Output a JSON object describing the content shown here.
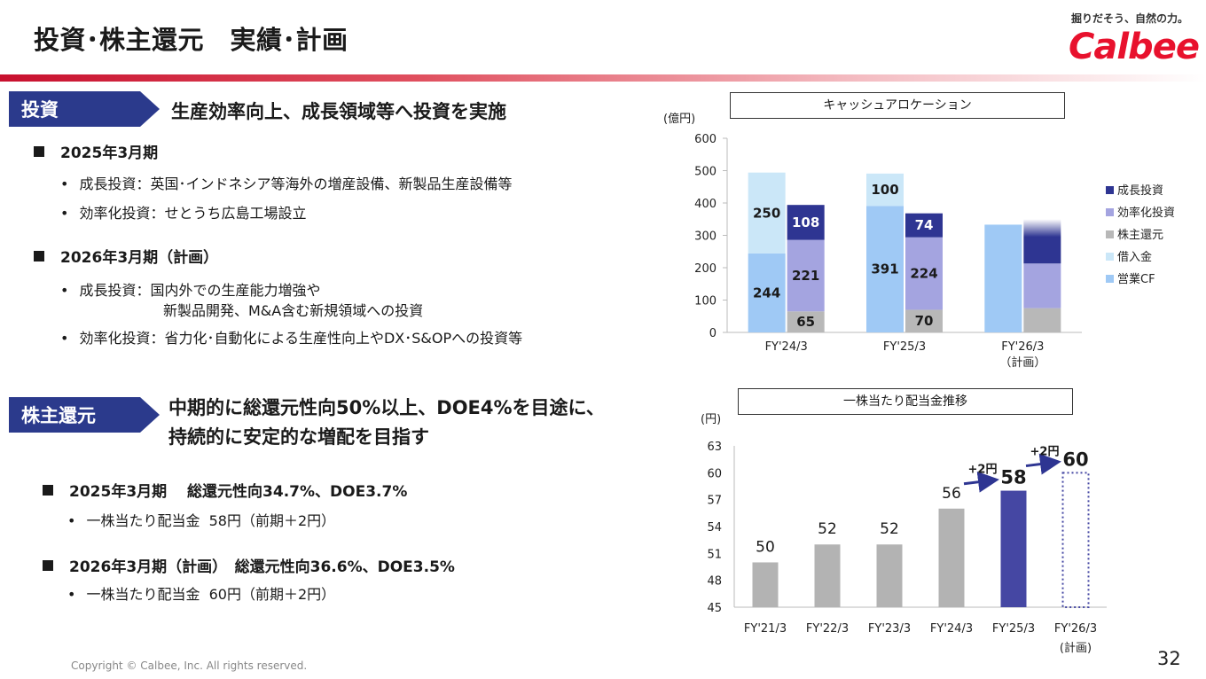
{
  "header": {
    "title": "投資･株主還元　実績･計画",
    "tagline": "掘りだそう、自然の力。",
    "logo_text": "Calbee",
    "brand_color": "#e8112d"
  },
  "investment": {
    "tag_label": "投資",
    "heading": "生産効率向上、成長領域等へ投資を実施",
    "fy25_title": "2025年3月期",
    "fy25_items": [
      "成長投資：英国･インドネシア等海外の増産設備、新製品生産設備等",
      "効率化投資：せとうち広島工場設立"
    ],
    "fy26_title": "2026年3月期（計画）",
    "fy26_item1_line1": "成長投資：国内外での生産能力増強や",
    "fy26_item1_line2": "新製品開発、M&A含む新規領域への投資",
    "fy26_item2": "効率化投資：省力化･自動化による生産性向上やDX･S&OPへの投資等"
  },
  "returns": {
    "tag_label": "株主還元",
    "heading_line1": "中期的に総還元性向50%以上、DOE4%を目途に、",
    "heading_line2": "持続的に安定的な増配を目指す",
    "fy25_title": "2025年3月期　 総還元性向34.7%、DOE3.7%",
    "fy25_item": "一株当たり配当金  58円（前期＋2円）",
    "fy26_title": "2026年3月期（計画）　総還元性向36.6%、DOE3.5%",
    "fy26_item": "一株当たり配当金  60円（前期＋2円）"
  },
  "footer": {
    "copyright": "Copyright © Calbee, Inc. All rights reserved.",
    "page_number": "32"
  },
  "chart_data": [
    {
      "type": "bar",
      "title": "キャッシュアロケーション",
      "ylabel": "(億円)",
      "ylim": [
        0,
        600
      ],
      "yticks": [
        0,
        100,
        200,
        300,
        400,
        500,
        600
      ],
      "categories": [
        "FY'24/3",
        "FY'25/3",
        "FY'26/3"
      ],
      "category_notes": [
        "",
        "",
        "（計画）"
      ],
      "sources": [
        {
          "name": "営業CF",
          "color": "#9fc9f5",
          "values": [
            244,
            391,
            333
          ]
        },
        {
          "name": "借入金",
          "color": "#cbe7f8",
          "values": [
            250,
            100,
            0
          ]
        }
      ],
      "uses": [
        {
          "name": "株主還元",
          "color": "#b8b8b8",
          "values": [
            65,
            70,
            75
          ]
        },
        {
          "name": "効率化投資",
          "color": "#a4a4e0",
          "values": [
            221,
            224,
            138
          ]
        },
        {
          "name": "成長投資",
          "color": "#2e3592",
          "values": [
            108,
            74,
            137
          ]
        }
      ],
      "labels": {
        "sources": [
          [
            "244",
            "250"
          ],
          [
            "391",
            "100"
          ],
          [
            "",
            ""
          ]
        ],
        "uses": [
          [
            "65",
            "221",
            "108"
          ],
          [
            "70",
            "224",
            "74"
          ],
          [
            "",
            "",
            ""
          ]
        ]
      },
      "legend": [
        "成長投資",
        "効率化投資",
        "株主還元",
        "借入金",
        "営業CF"
      ],
      "legend_position": "right"
    },
    {
      "type": "bar",
      "title": "一株当たり配当金推移",
      "ylabel": "(円)",
      "ylim": [
        45,
        63
      ],
      "yticks": [
        45,
        48,
        51,
        54,
        57,
        60,
        63
      ],
      "categories": [
        "FY'21/3",
        "FY'22/3",
        "FY'23/3",
        "FY'24/3",
        "FY'25/3",
        "FY'26/3"
      ],
      "category_notes": [
        "",
        "",
        "",
        "",
        "",
        "(計画)"
      ],
      "values": [
        50,
        52,
        52,
        56,
        58,
        60
      ],
      "value_labels": [
        "50",
        "52",
        "52",
        "56",
        "58",
        "60"
      ],
      "bar_colors": [
        "#b3b3b3",
        "#b3b3b3",
        "#b3b3b3",
        "#b3b3b3",
        "#4547a3",
        "plan-dotted"
      ],
      "annotations": [
        "+2円",
        "+2円"
      ]
    }
  ]
}
